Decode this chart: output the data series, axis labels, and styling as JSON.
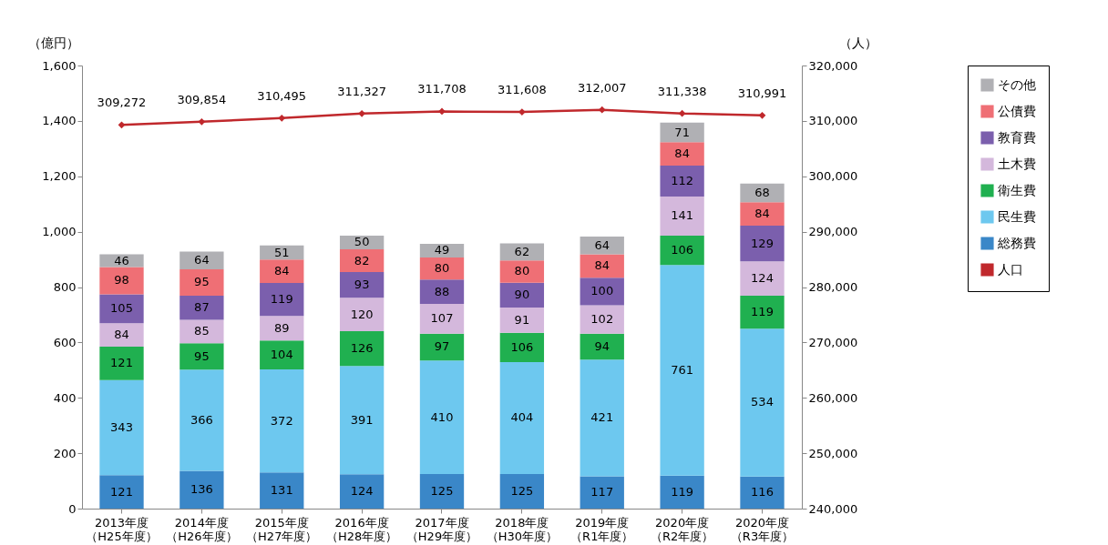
{
  "chart_data": {
    "type": "bar",
    "stacked": true,
    "ylabel": "（億円）",
    "y2label": "（人）",
    "categories": [
      "2013年度（H25年度）",
      "2014年度（H26年度）",
      "2015年度（H27年度）",
      "2016年度（H28年度）",
      "2017年度（H29年度）",
      "2018年度（H30年度）",
      "2019年度（R1年度）",
      "2020年度（R2年度）",
      "2020年度（R3年度）"
    ],
    "series": [
      {
        "name": "総務費",
        "color": "#3a87c8",
        "values": [
          121,
          136,
          131,
          124,
          125,
          125,
          117,
          119,
          116
        ]
      },
      {
        "name": "民生費",
        "color": "#6dc8ef",
        "values": [
          343,
          366,
          372,
          391,
          410,
          404,
          421,
          761,
          534
        ]
      },
      {
        "name": "衛生費",
        "color": "#20b050",
        "values": [
          121,
          95,
          104,
          126,
          97,
          106,
          94,
          106,
          119
        ]
      },
      {
        "name": "土木費",
        "color": "#d4b8dc",
        "values": [
          84,
          85,
          89,
          120,
          107,
          91,
          102,
          141,
          124
        ]
      },
      {
        "name": "教育費",
        "color": "#7b5fad",
        "values": [
          105,
          87,
          119,
          93,
          88,
          90,
          100,
          112,
          129
        ]
      },
      {
        "name": "公債費",
        "color": "#ef6f75",
        "values": [
          98,
          95,
          84,
          82,
          80,
          80,
          84,
          84,
          84
        ]
      },
      {
        "name": "その他",
        "color": "#b0b0b4",
        "values": [
          46,
          64,
          51,
          50,
          49,
          62,
          64,
          71,
          68
        ]
      },
      {
        "name": "人口",
        "type": "line",
        "axis": "y2",
        "color": "#c0282c",
        "values": [
          309272,
          309854,
          310495,
          311327,
          311708,
          311608,
          312007,
          311338,
          310991
        ],
        "value_labels": [
          "309,272",
          "309,854",
          "310,495",
          "311,327",
          "311,708",
          "311,608",
          "312,007",
          "311,338",
          "310,991"
        ]
      }
    ],
    "ylim": [
      0,
      1600
    ],
    "yticks": [
      0,
      200,
      400,
      600,
      800,
      {
        "value": 1000,
        "label": "1,000"
      },
      {
        "value": 1200,
        "label": "1,200"
      },
      {
        "value": 1400,
        "label": "1,400"
      },
      {
        "value": 1600,
        "label": "1,600"
      }
    ],
    "y2lim": [
      240000,
      320000
    ],
    "y2ticks": [
      {
        "value": 240000,
        "label": "240,000"
      },
      {
        "value": 250000,
        "label": "250,000"
      },
      {
        "value": 260000,
        "label": "260,000"
      },
      {
        "value": 270000,
        "label": "270,000"
      },
      {
        "value": 280000,
        "label": "280,000"
      },
      {
        "value": 290000,
        "label": "290,000"
      },
      {
        "value": 300000,
        "label": "300,000"
      },
      {
        "value": 310000,
        "label": "310,000"
      },
      {
        "value": 320000,
        "label": "320,000"
      }
    ],
    "data_labels": true,
    "legend": "right",
    "grid": false,
    "marker": "diamond"
  }
}
